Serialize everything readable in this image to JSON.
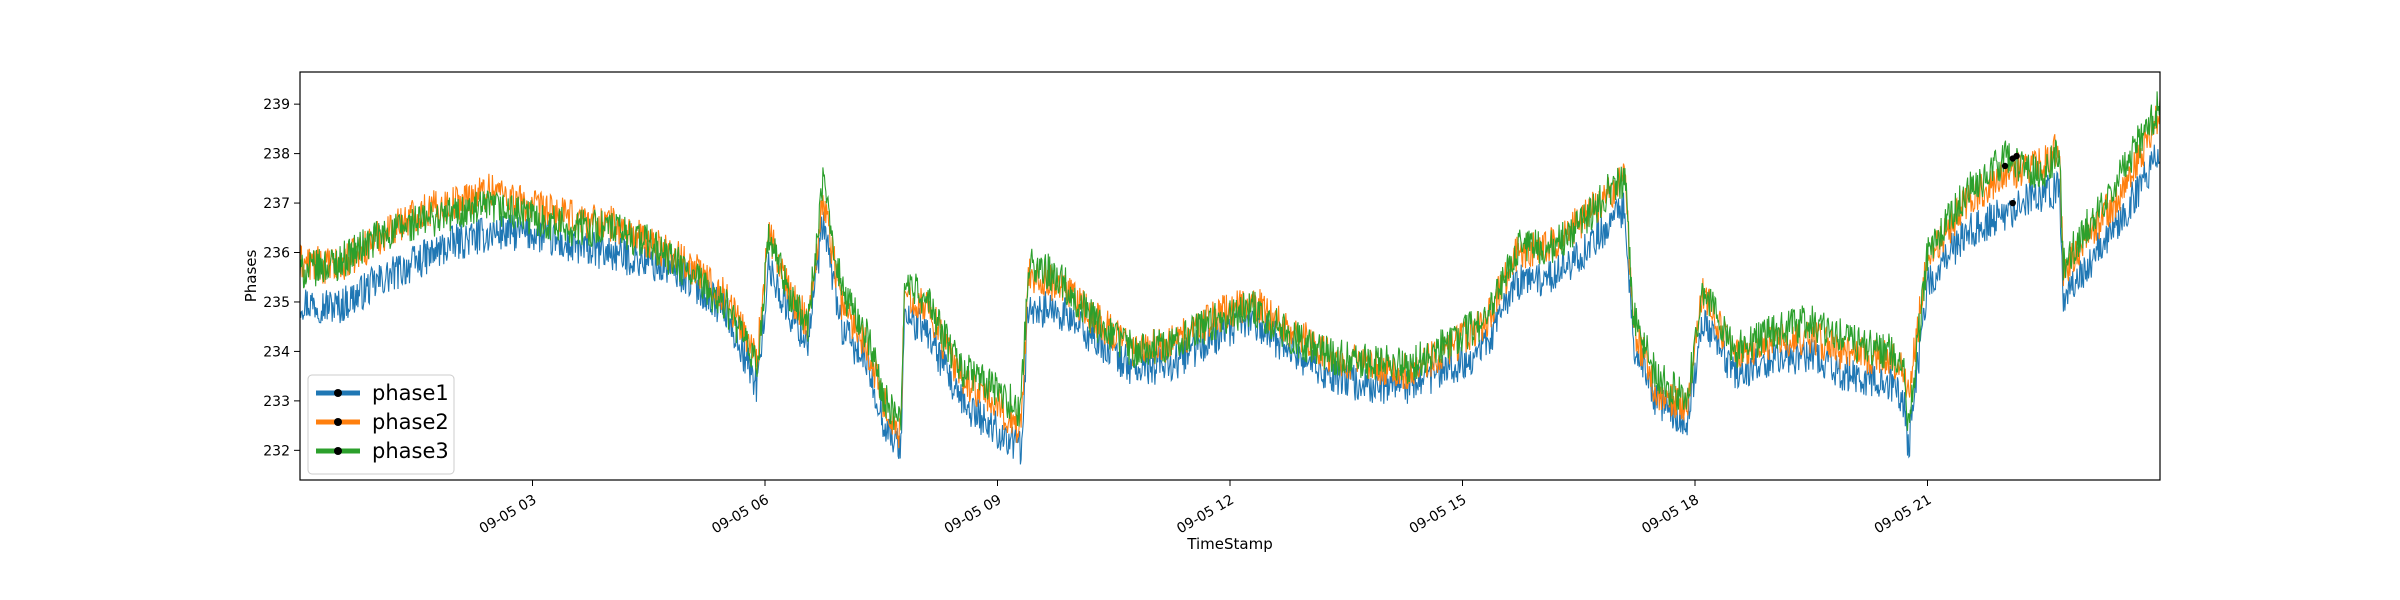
{
  "chart_data": {
    "type": "line",
    "xlabel": "TimeStamp",
    "ylabel": "Phases",
    "x_range_hours": [
      0,
      24
    ],
    "ylim": [
      231.4,
      239.65
    ],
    "xticks": [
      {
        "hour": 3,
        "label": "09-05 03"
      },
      {
        "hour": 6,
        "label": "09-05 06"
      },
      {
        "hour": 9,
        "label": "09-05 09"
      },
      {
        "hour": 12,
        "label": "09-05 12"
      },
      {
        "hour": 15,
        "label": "09-05 15"
      },
      {
        "hour": 18,
        "label": "09-05 18"
      },
      {
        "hour": 21,
        "label": "09-05 21"
      }
    ],
    "yticks": [
      232,
      233,
      234,
      235,
      236,
      237,
      238,
      239
    ],
    "legend_position": "lower-left",
    "x_hours": [
      0,
      0.5,
      1,
      1.5,
      2,
      2.5,
      3,
      3.5,
      4,
      4.5,
      5,
      5.5,
      5.9,
      6.05,
      6.3,
      6.55,
      6.75,
      7,
      7.3,
      7.55,
      7.75,
      7.8,
      8.1,
      8.5,
      9,
      9.3,
      9.4,
      9.8,
      10.3,
      10.8,
      11.3,
      11.8,
      12.3,
      12.8,
      13.3,
      13.8,
      14.3,
      14.8,
      15.3,
      15.7,
      16.1,
      16.5,
      16.9,
      17.1,
      17.2,
      17.5,
      17.9,
      18.1,
      18.5,
      19,
      19.5,
      20,
      20.5,
      20.7,
      20.75,
      21,
      21.5,
      22,
      22.5,
      22.7,
      22.75,
      23,
      23.5,
      24
    ],
    "series": [
      {
        "name": "phase1",
        "color": "#1f77b4",
        "values": [
          235.0,
          234.9,
          235.4,
          235.8,
          236.2,
          236.4,
          236.4,
          236.1,
          236.0,
          235.8,
          235.5,
          234.8,
          233.3,
          235.7,
          234.8,
          234.2,
          236.6,
          234.4,
          233.8,
          232.5,
          232.0,
          234.7,
          234.4,
          233.0,
          232.4,
          232.0,
          234.9,
          234.8,
          234.2,
          233.6,
          233.8,
          234.3,
          234.6,
          234.0,
          233.5,
          233.3,
          233.3,
          233.6,
          234.1,
          235.4,
          235.5,
          235.9,
          236.6,
          236.9,
          234.2,
          233.0,
          232.6,
          234.6,
          233.6,
          233.8,
          233.9,
          233.5,
          233.4,
          233.0,
          232.0,
          235.4,
          236.4,
          236.8,
          237.2,
          237.3,
          235.1,
          235.6,
          236.7,
          238.0
        ]
      },
      {
        "name": "phase2",
        "color": "#ff7f0e",
        "values": [
          235.8,
          235.7,
          236.3,
          236.8,
          237.0,
          237.3,
          236.9,
          236.7,
          236.6,
          236.2,
          235.8,
          235.1,
          233.9,
          236.4,
          235.2,
          234.6,
          237.1,
          234.9,
          234.2,
          232.9,
          232.3,
          235.2,
          234.9,
          233.5,
          232.9,
          232.4,
          235.6,
          235.3,
          234.6,
          234.0,
          234.2,
          234.7,
          235.0,
          234.4,
          233.9,
          233.7,
          233.6,
          234.0,
          234.6,
          236.0,
          236.1,
          236.6,
          237.2,
          237.5,
          234.5,
          233.2,
          232.9,
          235.2,
          233.9,
          234.2,
          234.3,
          233.9,
          233.9,
          233.6,
          233.1,
          235.9,
          237.0,
          237.6,
          237.8,
          238.2,
          235.6,
          236.2,
          237.2,
          238.8
        ]
      },
      {
        "name": "phase3",
        "color": "#2ca02c",
        "values": [
          235.6,
          235.8,
          236.3,
          236.6,
          236.8,
          236.9,
          236.7,
          236.5,
          236.5,
          236.2,
          235.6,
          234.9,
          233.7,
          236.3,
          235.2,
          234.5,
          237.4,
          235.2,
          234.4,
          233.0,
          232.5,
          235.4,
          235.0,
          233.7,
          233.2,
          232.8,
          235.8,
          235.5,
          234.5,
          234.0,
          234.2,
          234.6,
          234.9,
          234.3,
          233.9,
          233.8,
          233.7,
          234.2,
          234.6,
          236.1,
          236.1,
          236.5,
          237.3,
          237.4,
          234.8,
          233.5,
          233.0,
          235.3,
          234.0,
          234.4,
          234.6,
          234.2,
          234.0,
          233.8,
          232.4,
          236.0,
          237.2,
          237.9,
          237.6,
          238.1,
          235.7,
          236.4,
          237.6,
          239.0
        ]
      }
    ]
  }
}
